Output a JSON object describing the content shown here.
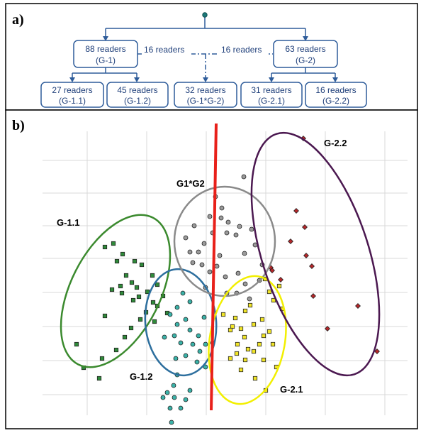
{
  "panel_a": {
    "label": "a)",
    "nodes": {
      "g1": {
        "line1": "88 readers",
        "line2": "(G-1)"
      },
      "g2": {
        "line1": "63 readers",
        "line2": "(G-2)"
      },
      "g11": {
        "line1": "27 readers",
        "line2": "(G-1.1)"
      },
      "g12": {
        "line1": "45 readers",
        "line2": "(G-1.2)"
      },
      "g1g2": {
        "line1": "32 readers",
        "line2": "(G-1*G-2)"
      },
      "g21": {
        "line1": "31 readers",
        "line2": "(G-2.1)"
      },
      "g22": {
        "line1": "16 readers",
        "line2": "(G-2.2)"
      }
    },
    "link_left": "16 readers",
    "link_right": "16 readers",
    "colors": {
      "node_border": "#2e5c9a",
      "text": "#1f3f7a"
    }
  },
  "panel_b": {
    "label": "b)",
    "groups": {
      "g11": "G-1.1",
      "g12": "G-1.2",
      "g1g2": "G1*G2",
      "g21": "G-2.1",
      "g22": "G-2.2"
    },
    "colors": {
      "g11": "#3b8a2e",
      "g12": "#2d6f9e",
      "g1g2": "#8a8a8a",
      "g21": "#f2ef00",
      "g22": "#4b1850",
      "divider": "#e8201a",
      "grid": "#d8d8d8"
    }
  },
  "chart_data": {
    "type": "scatter",
    "series": [
      {
        "name": "G-1.1",
        "marker": "square",
        "color": "#2f8a3a",
        "points": [
          [
            148,
            193
          ],
          [
            160,
            188
          ],
          [
            173,
            203
          ],
          [
            165,
            213
          ],
          [
            190,
            213
          ],
          [
            200,
            218
          ],
          [
            178,
            233
          ],
          [
            186,
            243
          ],
          [
            170,
            248
          ],
          [
            158,
            253
          ],
          [
            172,
            258
          ],
          [
            193,
            250
          ],
          [
            208,
            256
          ],
          [
            196,
            263
          ],
          [
            188,
            268
          ],
          [
            216,
            271
          ],
          [
            206,
            285
          ],
          [
            222,
            276
          ],
          [
            198,
            295
          ],
          [
            185,
            307
          ],
          [
            176,
            320
          ],
          [
            164,
            338
          ],
          [
            144,
            350
          ],
          [
            118,
            363
          ],
          [
            140,
            378
          ],
          [
            218,
            298
          ],
          [
            236,
            286
          ],
          [
            230,
            262
          ],
          [
            222,
            246
          ],
          [
            215,
            233
          ],
          [
            108,
            330
          ],
          [
            148,
            290
          ]
        ]
      },
      {
        "name": "G-1.2",
        "marker": "circle",
        "color": "#3ab2a8",
        "points": [
          [
            258,
            258
          ],
          [
            250,
            278
          ],
          [
            240,
            288
          ],
          [
            262,
            295
          ],
          [
            250,
            302
          ],
          [
            268,
            310
          ],
          [
            280,
            318
          ],
          [
            246,
            318
          ],
          [
            232,
            320
          ],
          [
            255,
            328
          ],
          [
            272,
            330
          ],
          [
            290,
            330
          ],
          [
            282,
            340
          ],
          [
            262,
            346
          ],
          [
            248,
            350
          ],
          [
            278,
            355
          ],
          [
            290,
            362
          ],
          [
            250,
            373
          ],
          [
            245,
            388
          ],
          [
            236,
            398
          ],
          [
            230,
            405
          ],
          [
            246,
            405
          ],
          [
            262,
            408
          ],
          [
            268,
            395
          ],
          [
            240,
            420
          ],
          [
            255,
            420
          ],
          [
            242,
            440
          ],
          [
            300,
            328
          ],
          [
            288,
            292
          ],
          [
            268,
            270
          ]
        ]
      },
      {
        "name": "G1*G2",
        "marker": "circle",
        "color": "#9a9a9a",
        "points": [
          [
            344,
            94
          ],
          [
            304,
            122
          ],
          [
            313,
            138
          ],
          [
            296,
            150
          ],
          [
            312,
            152
          ],
          [
            322,
            158
          ],
          [
            338,
            164
          ],
          [
            320,
            173
          ],
          [
            333,
            176
          ],
          [
            355,
            168
          ],
          [
            300,
            173
          ],
          [
            288,
            188
          ],
          [
            268,
            200
          ],
          [
            272,
            215
          ],
          [
            285,
            218
          ],
          [
            296,
            228
          ],
          [
            306,
            220
          ],
          [
            318,
            235
          ],
          [
            336,
            230
          ],
          [
            346,
            245
          ],
          [
            334,
            258
          ],
          [
            352,
            266
          ],
          [
            366,
            240
          ],
          [
            370,
            218
          ],
          [
            262,
            180
          ],
          [
            274,
            163
          ],
          [
            290,
            250
          ],
          [
            320,
            258
          ],
          [
            345,
            202
          ],
          [
            360,
            190
          ],
          [
            310,
            205
          ],
          [
            280,
            200
          ]
        ]
      },
      {
        "name": "G-2.1",
        "marker": "square",
        "color": "#f0e428",
        "points": [
          [
            374,
            238
          ],
          [
            394,
            248
          ],
          [
            380,
            256
          ],
          [
            386,
            268
          ],
          [
            398,
            280
          ],
          [
            353,
            275
          ],
          [
            346,
            283
          ],
          [
            332,
            293
          ],
          [
            328,
            305
          ],
          [
            340,
            308
          ],
          [
            358,
            302
          ],
          [
            372,
            318
          ],
          [
            366,
            330
          ],
          [
            350,
            337
          ],
          [
            334,
            343
          ],
          [
            325,
            350
          ],
          [
            346,
            352
          ],
          [
            372,
            352
          ],
          [
            390,
            362
          ],
          [
            340,
            366
          ],
          [
            360,
            378
          ],
          [
            375,
            395
          ],
          [
            325,
            310
          ],
          [
            315,
            288
          ],
          [
            345,
            320
          ],
          [
            335,
            330
          ],
          [
            358,
            340
          ],
          [
            370,
            295
          ],
          [
            380,
            312
          ],
          [
            385,
            330
          ]
        ]
      },
      {
        "name": "G-2.2",
        "marker": "diamond",
        "color": "#b5272a",
        "points": [
          [
            428,
            40
          ],
          [
            418,
            142
          ],
          [
            430,
            165
          ],
          [
            410,
            185
          ],
          [
            432,
            205
          ],
          [
            440,
            220
          ],
          [
            382,
            222
          ],
          [
            442,
            262
          ],
          [
            505,
            276
          ],
          [
            462,
            308
          ],
          [
            532,
            340
          ],
          [
            396,
            239
          ],
          [
            384,
            226
          ]
        ]
      }
    ]
  }
}
